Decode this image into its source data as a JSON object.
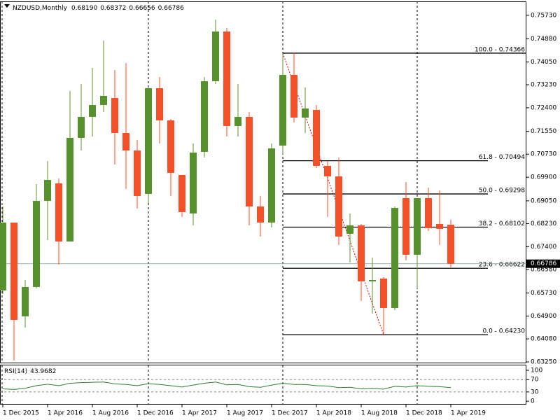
{
  "chart_data": {
    "type": "candlestick",
    "title": "NZDUSD,Monthly",
    "header_values": [
      "0.68190",
      "0.68372",
      "0.66656",
      "0.66786"
    ],
    "categories": [
      "1 Dec 2015",
      null,
      null,
      null,
      "1 Apr 2016",
      null,
      null,
      null,
      "1 Aug 2016",
      null,
      null,
      null,
      "1 Dec 2016",
      null,
      null,
      null,
      "1 Apr 2017",
      null,
      null,
      null,
      "1 Aug 2017",
      null,
      null,
      null,
      "1 Dec 2017",
      null,
      null,
      null,
      "1 Apr 2018",
      null,
      null,
      null,
      "1 Aug 2018",
      null,
      null,
      null,
      "1 Dec 2018",
      null,
      null,
      null,
      "1 Apr 2019"
    ],
    "open": [
      0.65822,
      0.68267,
      0.6489,
      0.65948,
      0.69048,
      0.69678,
      0.67586,
      0.71316,
      0.72072,
      0.725,
      0.72752,
      0.71492,
      0.70862,
      0.693,
      0.73105,
      0.71946,
      0.6998,
      0.68594,
      0.70812,
      0.73357,
      0.75146,
      0.71744,
      0.72072,
      0.68846,
      0.68267,
      0.71039,
      0.73584,
      0.72047,
      0.72324,
      0.70308,
      0.6993,
      0.67864,
      0.68166,
      0.6615,
      0.66251,
      0.65192,
      0.69149,
      0.67108,
      0.69149,
      0.68216,
      0.6819
    ],
    "high": [
      0.68846,
      0.68267,
      0.662,
      0.69653,
      0.70484,
      0.69854,
      0.73004,
      0.73256,
      0.73836,
      0.74819,
      0.7376,
      0.74012,
      0.7124,
      0.73105,
      0.73508,
      0.71996,
      0.6998,
      0.71114,
      0.73508,
      0.75575,
      0.75272,
      0.73256,
      0.72248,
      0.69224,
      0.71114,
      0.74366,
      0.7439,
      0.7313,
      0.725,
      0.70484,
      0.7061,
      0.68594,
      0.68216,
      0.67007,
      0.66301,
      0.68846,
      0.69728,
      0.69149,
      0.69527,
      0.69426,
      0.68372
    ],
    "low": [
      0.65696,
      0.63302,
      0.64487,
      0.65898,
      0.67637,
      0.66755,
      0.67586,
      0.70862,
      0.71366,
      0.72248,
      0.70358,
      0.69476,
      0.68771,
      0.68972,
      0.71114,
      0.69224,
      0.68468,
      0.68166,
      0.7061,
      0.73256,
      0.71366,
      0.71366,
      0.68166,
      0.67763,
      0.6809,
      0.70736,
      0.7187,
      0.71492,
      0.70232,
      0.68468,
      0.6746,
      0.6683,
      0.65444,
      0.64991,
      0.6423,
      0.65117,
      0.66906,
      0.65898,
      0.67964,
      0.6746,
      0.66656
    ],
    "close": [
      0.68267,
      0.64764,
      0.65948,
      0.69048,
      0.69804,
      0.67586,
      0.71316,
      0.72072,
      0.725,
      0.72828,
      0.71492,
      0.70862,
      0.69224,
      0.73105,
      0.71946,
      0.70056,
      0.68645,
      0.70787,
      0.73357,
      0.75146,
      0.71744,
      0.72072,
      0.68846,
      0.68267,
      0.70938,
      0.73584,
      0.72047,
      0.72374,
      0.70308,
      0.6993,
      0.67763,
      0.68166,
      0.6615,
      0.662,
      0.65192,
      0.68796,
      0.67108,
      0.69149,
      0.68065,
      0.6804,
      0.66786
    ],
    "close_label": "0.66786",
    "up_color": "#58902e",
    "down_color": "#f1512a",
    "ylim": [
      0.632,
      0.7623
    ],
    "yticks": [
      {
        "value": 0.7573,
        "label": "0.75730"
      },
      {
        "value": 0.7488,
        "label": "0.74880"
      },
      {
        "value": 0.7405,
        "label": "0.74050"
      },
      {
        "value": 0.7323,
        "label": "0.73230"
      },
      {
        "value": 0.724,
        "label": "0.72400"
      },
      {
        "value": 0.7155,
        "label": "0.71550"
      },
      {
        "value": 0.7073,
        "label": "0.70730"
      },
      {
        "value": 0.699,
        "label": "0.69900"
      },
      {
        "value": 0.6905,
        "label": "0.69050"
      },
      {
        "value": 0.6823,
        "label": "0.68230"
      },
      {
        "value": 0.674,
        "label": "0.67400"
      },
      {
        "value": 0.6658,
        "label": "0.66580"
      },
      {
        "value": 0.6573,
        "label": "0.65730"
      },
      {
        "value": 0.649,
        "label": "0.64900"
      },
      {
        "value": 0.6408,
        "label": "0.64080"
      },
      {
        "value": 0.6325,
        "label": "0.63250"
      }
    ],
    "fib_levels": [
      {
        "value": 0.74366,
        "label": "100.0 - 0.74366"
      },
      {
        "value": 0.70494,
        "label": "61.8 - 0.70494"
      },
      {
        "value": 0.69298,
        "label": "50.0 - 0.69298"
      },
      {
        "value": 0.68102,
        "label": "38.2 - 0.68102"
      },
      {
        "value": 0.66622,
        "label": "23.6 - 0.66622"
      },
      {
        "value": 0.6423,
        "label": "0.0 - 0.64230"
      }
    ],
    "rsi": {
      "title": "RSI(14)",
      "color": "#2e7d32",
      "values": [
        40,
        38,
        42,
        50,
        55,
        50,
        58,
        60,
        61,
        62,
        56,
        54,
        50,
        57,
        54,
        50,
        46,
        52,
        58,
        62,
        53,
        54,
        47,
        45,
        52,
        58,
        54,
        54,
        50,
        49,
        44,
        45,
        40,
        41,
        39,
        48,
        46,
        50,
        48,
        47,
        43.9682
      ],
      "ylim": [
        -11,
        118
      ],
      "yticks": [
        100,
        70,
        30,
        0
      ],
      "levels": [
        70,
        30
      ]
    }
  }
}
